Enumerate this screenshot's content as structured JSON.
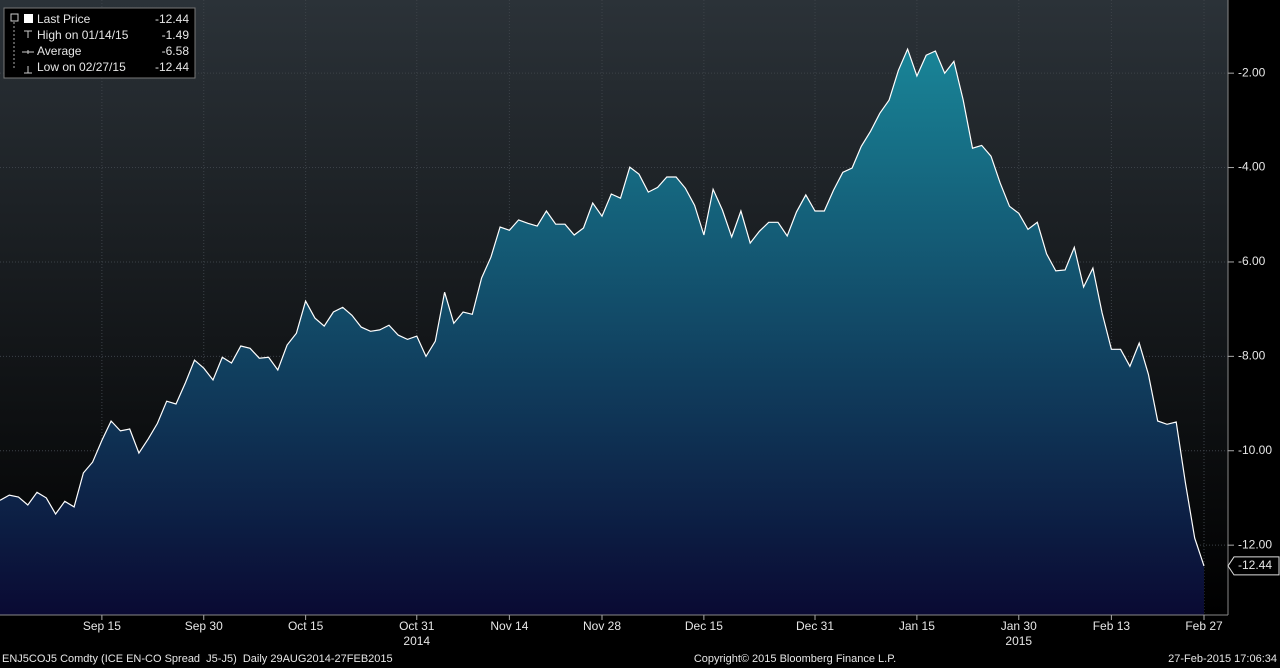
{
  "chart_data": {
    "type": "area",
    "series": [
      {
        "name": "Last Price",
        "color": "#ffffff",
        "fill_top": "#1a8fa0",
        "fill_bottom": "#0a0a33",
        "values": [
          -11.05,
          -10.94,
          -10.98,
          -11.15,
          -10.88,
          -11.0,
          -11.34,
          -11.07,
          -11.19,
          -10.47,
          -10.24,
          -9.78,
          -9.37,
          -9.58,
          -9.54,
          -10.05,
          -9.75,
          -9.42,
          -8.95,
          -9.01,
          -8.57,
          -8.08,
          -8.25,
          -8.5,
          -8.02,
          -8.14,
          -7.78,
          -7.83,
          -8.04,
          -8.02,
          -8.29,
          -7.76,
          -7.51,
          -6.83,
          -7.19,
          -7.36,
          -7.06,
          -6.96,
          -7.13,
          -7.38,
          -7.47,
          -7.44,
          -7.34,
          -7.55,
          -7.64,
          -7.57,
          -8.0,
          -7.68,
          -6.64,
          -7.3,
          -7.06,
          -7.11,
          -6.34,
          -5.9,
          -5.26,
          -5.33,
          -5.11,
          -5.18,
          -5.24,
          -4.92,
          -5.2,
          -5.2,
          -5.43,
          -5.28,
          -4.75,
          -5.03,
          -4.56,
          -4.65,
          -3.99,
          -4.14,
          -4.52,
          -4.42,
          -4.2,
          -4.2,
          -4.44,
          -4.8,
          -5.43,
          -4.46,
          -4.9,
          -5.47,
          -4.92,
          -5.6,
          -5.35,
          -5.16,
          -5.16,
          -5.45,
          -4.94,
          -4.58,
          -4.92,
          -4.92,
          -4.48,
          -4.1,
          -4.01,
          -3.55,
          -3.23,
          -2.85,
          -2.57,
          -1.94,
          -1.49,
          -2.06,
          -1.62,
          -1.53,
          -2.0,
          -1.75,
          -2.57,
          -3.59,
          -3.53,
          -3.76,
          -4.33,
          -4.82,
          -4.97,
          -5.31,
          -5.16,
          -5.83,
          -6.19,
          -6.17,
          -5.69,
          -6.53,
          -6.13,
          -7.08,
          -7.85,
          -7.85,
          -8.21,
          -7.72,
          -8.38,
          -9.37,
          -9.44,
          -9.39,
          -10.69,
          -11.85,
          -12.44
        ]
      }
    ],
    "categories": [
      null,
      null,
      null,
      null,
      null,
      null,
      null,
      null,
      null,
      null,
      null,
      "Sep 15",
      null,
      null,
      null,
      null,
      null,
      null,
      null,
      null,
      null,
      null,
      "Sep 30",
      null,
      null,
      null,
      null,
      null,
      null,
      null,
      null,
      null,
      null,
      "Oct 15",
      null,
      null,
      null,
      null,
      null,
      null,
      null,
      null,
      null,
      null,
      null,
      "Oct 31",
      null,
      null,
      null,
      null,
      null,
      null,
      null,
      null,
      null,
      "Nov 14",
      null,
      null,
      null,
      null,
      null,
      null,
      null,
      null,
      null,
      "Nov 28",
      null,
      null,
      null,
      null,
      null,
      null,
      null,
      null,
      null,
      null,
      "Dec 15",
      null,
      null,
      null,
      null,
      null,
      null,
      null,
      null,
      null,
      null,
      null,
      "Dec 31",
      null,
      null,
      null,
      null,
      null,
      null,
      null,
      null,
      null,
      null,
      "Jan 15",
      null,
      null,
      null,
      null,
      null,
      null,
      null,
      null,
      null,
      null,
      "Jan 30",
      null,
      null,
      null,
      null,
      null,
      null,
      null,
      null,
      null,
      "Feb 13",
      null,
      null,
      null,
      null,
      null,
      null,
      null,
      null,
      null,
      "Feb 27"
    ],
    "x_years": [
      {
        "at": "Oct 31",
        "label": "2014"
      },
      {
        "at": "Jan 30",
        "label": "2015"
      }
    ],
    "ylim": [
      -13.48,
      -0.45
    ],
    "yticks": [
      {
        "value": -12,
        "label": "-12.00"
      },
      {
        "value": -10,
        "label": "-10.00"
      },
      {
        "value": -8,
        "label": "-8.00"
      },
      {
        "value": -6,
        "label": "-6.00"
      },
      {
        "value": -4,
        "label": "-4.00"
      },
      {
        "value": -2,
        "label": "-2.00"
      }
    ],
    "grid": true,
    "stats": [
      {
        "label": "High on 01/14/15",
        "value": -1.49
      },
      {
        "label": "Average",
        "value": -6.58
      },
      {
        "label": "Low on 02/27/15",
        "value": -12.44
      }
    ],
    "footer": {
      "left": "ENJ5COJ5 Comdty (ICE EN-CO Spread  J5-J5)  Daily 29AUG2014-27FEB2015",
      "center": "Copyright© 2015 Bloomberg Finance L.P.",
      "right": "27-Feb-2015 17:06:34"
    }
  }
}
